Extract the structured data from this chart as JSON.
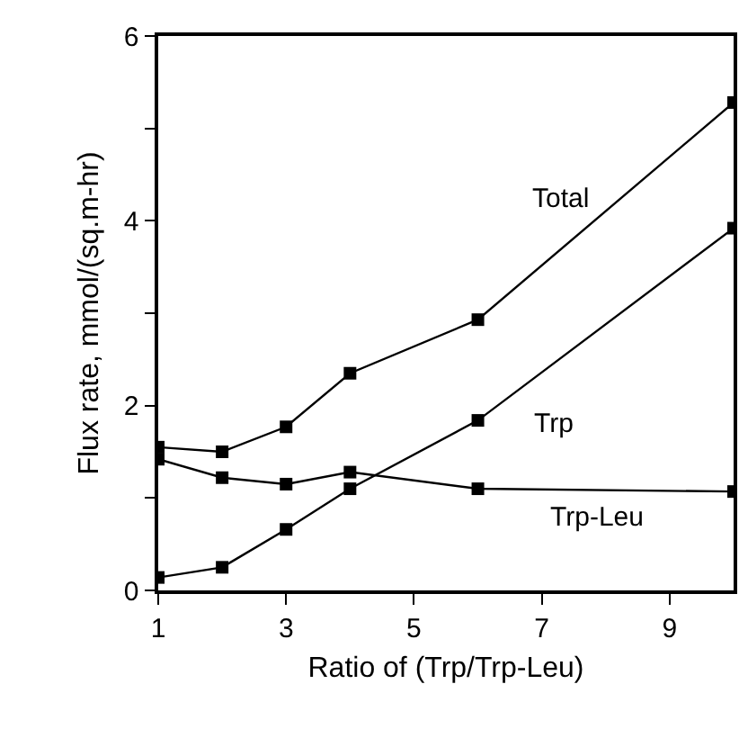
{
  "chart_data": {
    "type": "line",
    "xlabel": "Ratio of (Trp/Trp-Leu)",
    "ylabel": "Flux rate, mmol/(sq.m-hr)",
    "x": [
      1,
      2,
      3,
      4,
      6,
      10
    ],
    "series": [
      {
        "name": "Total",
        "color": "#000000",
        "values": [
          1.55,
          1.5,
          1.77,
          2.35,
          2.93,
          5.28
        ]
      },
      {
        "name": "Trp",
        "color": "#000000",
        "values": [
          0.14,
          0.25,
          0.66,
          1.1,
          1.84,
          3.92
        ]
      },
      {
        "name": "Trp-Leu",
        "color": "#000000",
        "values": [
          1.42,
          1.22,
          1.15,
          1.28,
          1.1,
          1.07
        ]
      }
    ],
    "xlim": [
      1,
      10
    ],
    "xticks": [
      1,
      3,
      5,
      7,
      9
    ],
    "ylim": [
      0,
      6
    ],
    "yticks": [
      0,
      {
        "value": 1,
        "label": null
      },
      2,
      {
        "value": 3,
        "label": null
      },
      4,
      {
        "value": 5,
        "label": null
      },
      6
    ],
    "grid": false,
    "legend": false,
    "marker": "square",
    "line_style": "solid"
  }
}
